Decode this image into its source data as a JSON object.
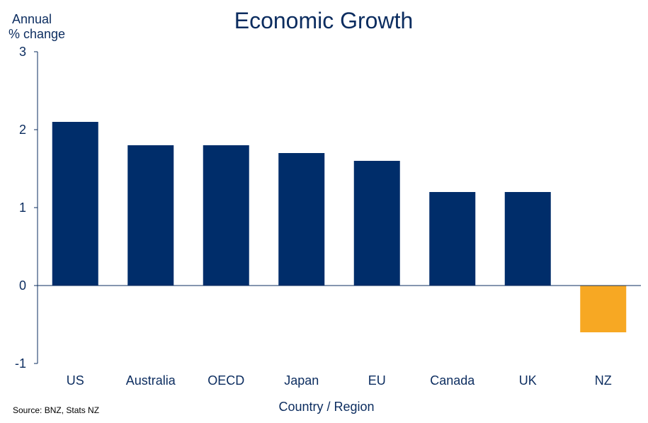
{
  "chart_data": {
    "type": "bar",
    "title": "Economic Growth",
    "ylabel_lines": [
      "Annual",
      "% change"
    ],
    "xlabel": "Country / Region",
    "source": "Source: BNZ, Stats NZ",
    "categories": [
      "US",
      "Australia",
      "OECD",
      "Japan",
      "EU",
      "Canada",
      "UK",
      "NZ"
    ],
    "values": [
      2.1,
      1.8,
      1.8,
      1.7,
      1.6,
      1.2,
      1.2,
      -0.6
    ],
    "ylim": [
      -1,
      3
    ],
    "yticks": [
      -1,
      0,
      1,
      2,
      3
    ],
    "ytick_labels": [
      "-1",
      "0",
      "1",
      "2",
      "3"
    ],
    "grid": false,
    "colors": {
      "bar": "#002d6a",
      "highlight": "#f7a823",
      "text": "#0b2c5f",
      "axis": "#0b2c5f"
    },
    "highlight_category": "NZ"
  }
}
